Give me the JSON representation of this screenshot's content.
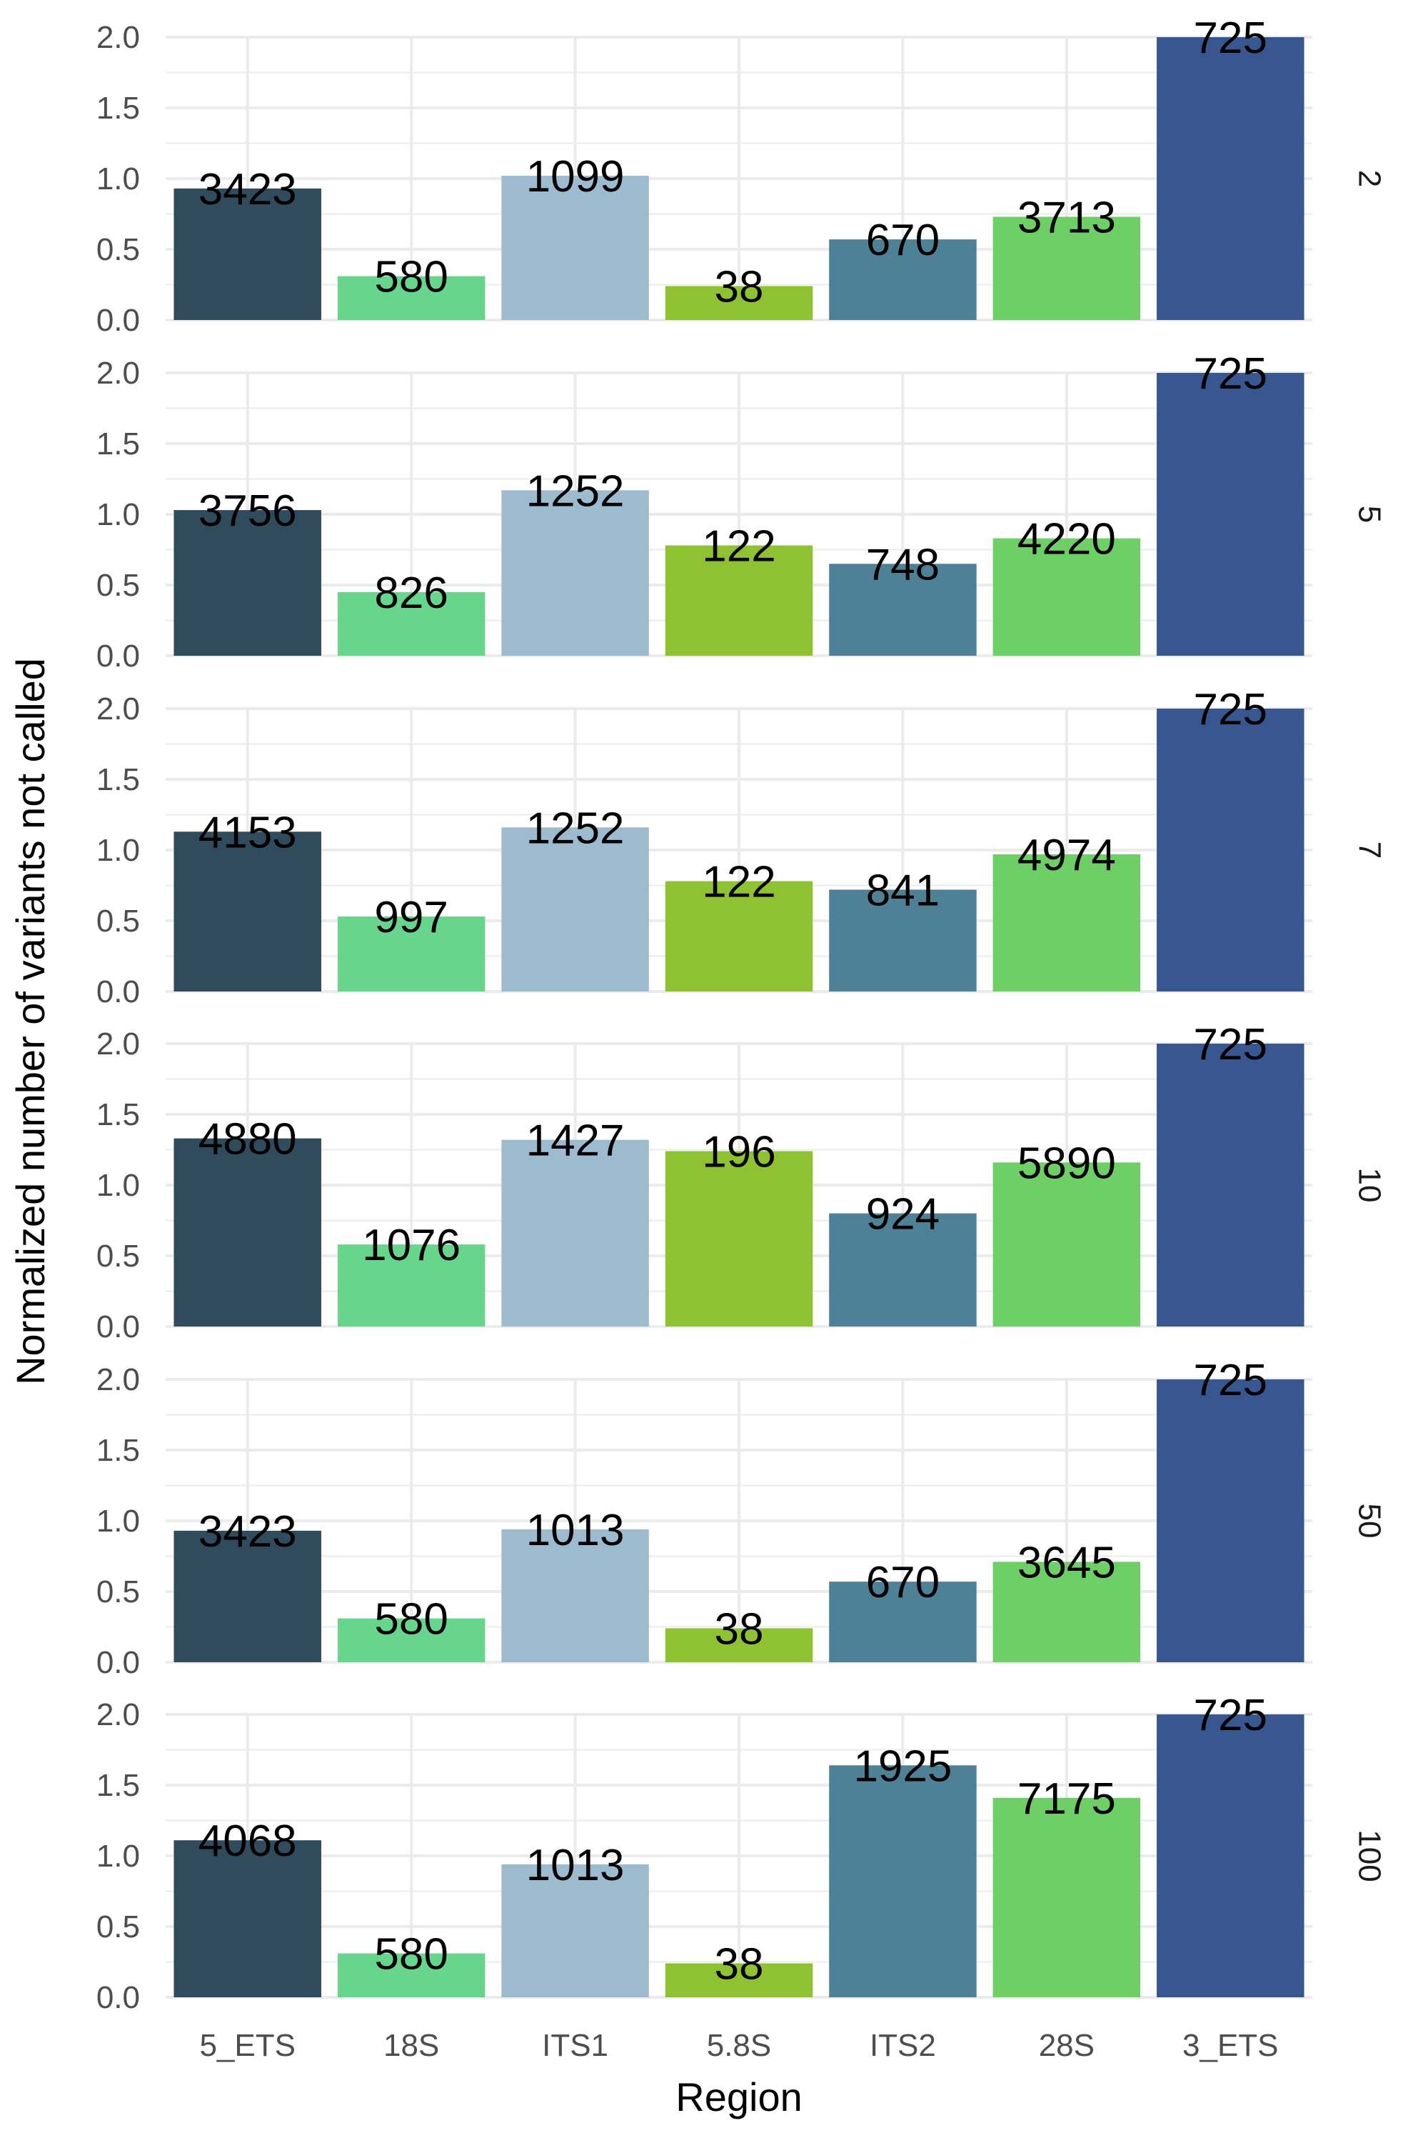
{
  "chart_data": {
    "type": "bar",
    "facet_by": "row",
    "xlabel": "Region",
    "ylabel": "Normalized number of variants not called",
    "categories": [
      "5_ETS",
      "18S",
      "ITS1",
      "5.8S",
      "ITS2",
      "28S",
      "3_ETS"
    ],
    "colors": [
      "#2F4B5C",
      "#68D58C",
      "#9DBBCF",
      "#8FC232",
      "#4E8196",
      "#6DCF66",
      "#385791"
    ],
    "ylim": [
      0,
      2.0
    ],
    "yticks": [
      "0.0",
      "0.5",
      "1.0",
      "1.5",
      "2.0"
    ],
    "grid": true,
    "panels": [
      {
        "strip": "2",
        "values": [
          0.93,
          0.31,
          1.02,
          0.24,
          0.57,
          0.73,
          2.0
        ],
        "labels": [
          "3423",
          "580",
          "1099",
          "38",
          "670",
          "3713",
          "725"
        ]
      },
      {
        "strip": "5",
        "values": [
          1.03,
          0.45,
          1.17,
          0.78,
          0.65,
          0.83,
          2.0
        ],
        "labels": [
          "3756",
          "826",
          "1252",
          "122",
          "748",
          "4220",
          "725"
        ]
      },
      {
        "strip": "7",
        "values": [
          1.13,
          0.53,
          1.16,
          0.78,
          0.72,
          0.97,
          2.0
        ],
        "labels": [
          "4153",
          "997",
          "1252",
          "122",
          "841",
          "4974",
          "725"
        ]
      },
      {
        "strip": "10",
        "values": [
          1.33,
          0.58,
          1.32,
          1.24,
          0.8,
          1.16,
          2.0
        ],
        "labels": [
          "4880",
          "1076",
          "1427",
          "196",
          "924",
          "5890",
          "725"
        ]
      },
      {
        "strip": "50",
        "values": [
          0.93,
          0.31,
          0.94,
          0.24,
          0.57,
          0.71,
          2.0
        ],
        "labels": [
          "3423",
          "580",
          "1013",
          "38",
          "670",
          "3645",
          "725"
        ]
      },
      {
        "strip": "100",
        "values": [
          1.11,
          0.31,
          0.94,
          0.24,
          1.64,
          1.41,
          2.0
        ],
        "labels": [
          "4068",
          "580",
          "1013",
          "38",
          "1925",
          "7175",
          "725"
        ]
      }
    ]
  }
}
